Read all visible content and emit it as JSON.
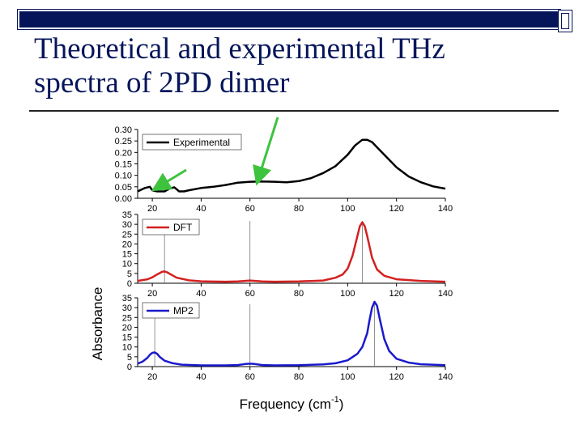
{
  "slide": {
    "title_line1": "Theoretical and experimental THz",
    "title_line2": "spectra of 2PD dimer",
    "accent_color": "#06155a"
  },
  "chart_data": {
    "type": "line",
    "xlabel": "Frequency (cm",
    "xlabel_sup": "-1",
    "xlabel_close": ")",
    "ylabel": "Absorbance",
    "xlim": [
      14,
      140
    ],
    "xticks": [
      "20",
      "40",
      "60",
      "80",
      "100",
      "120",
      "140"
    ],
    "panels": [
      {
        "legend": "Experimental",
        "color": "#000000",
        "ylim": [
          0,
          0.3
        ],
        "yticks": [
          "0.30",
          "0.25",
          "0.20",
          "0.15",
          "0.10",
          "0.05",
          "0.00"
        ],
        "x": [
          14,
          17,
          19,
          20,
          22,
          25,
          27,
          29,
          31,
          33,
          35,
          40,
          45,
          50,
          55,
          60,
          65,
          70,
          75,
          80,
          85,
          90,
          95,
          100,
          103,
          106,
          108,
          110,
          115,
          120,
          125,
          130,
          135,
          140
        ],
        "y": [
          0.03,
          0.045,
          0.05,
          0.035,
          0.03,
          0.03,
          0.042,
          0.048,
          0.03,
          0.03,
          0.035,
          0.045,
          0.05,
          0.058,
          0.068,
          0.072,
          0.073,
          0.072,
          0.07,
          0.075,
          0.088,
          0.11,
          0.14,
          0.19,
          0.23,
          0.255,
          0.255,
          0.245,
          0.19,
          0.135,
          0.095,
          0.07,
          0.052,
          0.042
        ]
      },
      {
        "legend": "DFT",
        "color": "#d42020",
        "ylim": [
          0,
          35
        ],
        "yticks": [
          "35",
          "30",
          "25",
          "20",
          "15",
          "10",
          "5",
          "0"
        ],
        "sticks": [
          25,
          60,
          106
        ],
        "x": [
          14,
          18,
          20,
          22,
          24,
          25,
          26,
          28,
          30,
          35,
          40,
          50,
          55,
          58,
          60,
          62,
          65,
          70,
          80,
          90,
          95,
          98,
          100,
          102,
          104,
          105,
          106,
          107,
          108,
          110,
          112,
          115,
          120,
          130,
          140
        ],
        "y": [
          1.2,
          2,
          3,
          4.5,
          5.8,
          6,
          5.6,
          4.2,
          2.8,
          1.5,
          1,
          0.8,
          0.9,
          1.2,
          1.4,
          1.2,
          0.9,
          0.8,
          0.9,
          1.4,
          2.8,
          4.5,
          7.5,
          14,
          24,
          29,
          31,
          29,
          24,
          13,
          7,
          3.8,
          2,
          1.2,
          0.8
        ]
      },
      {
        "legend": "MP2",
        "color": "#1a1acc",
        "ylim": [
          0,
          35
        ],
        "yticks": [
          "35",
          "30",
          "25",
          "20",
          "15",
          "10",
          "5",
          "0"
        ],
        "sticks": [
          21,
          60,
          111
        ],
        "x": [
          14,
          16,
          18,
          19,
          20,
          21,
          22,
          23,
          25,
          28,
          32,
          40,
          50,
          55,
          58,
          60,
          62,
          65,
          70,
          80,
          90,
          95,
          100,
          104,
          106,
          108,
          109,
          110,
          111,
          112,
          113,
          115,
          117,
          120,
          125,
          130,
          140
        ],
        "y": [
          1.5,
          2.5,
          4.5,
          6,
          7,
          7.2,
          6.5,
          5,
          3,
          1.8,
          1,
          0.6,
          0.6,
          0.8,
          1.3,
          1.5,
          1.3,
          0.8,
          0.6,
          0.7,
          1.1,
          1.7,
          3.2,
          6.5,
          10,
          17,
          24,
          30,
          33,
          31,
          25,
          14,
          8,
          4,
          2,
          1.2,
          0.7
        ]
      }
    ],
    "annotations": [
      "green-arrow",
      "green-arrow"
    ]
  }
}
